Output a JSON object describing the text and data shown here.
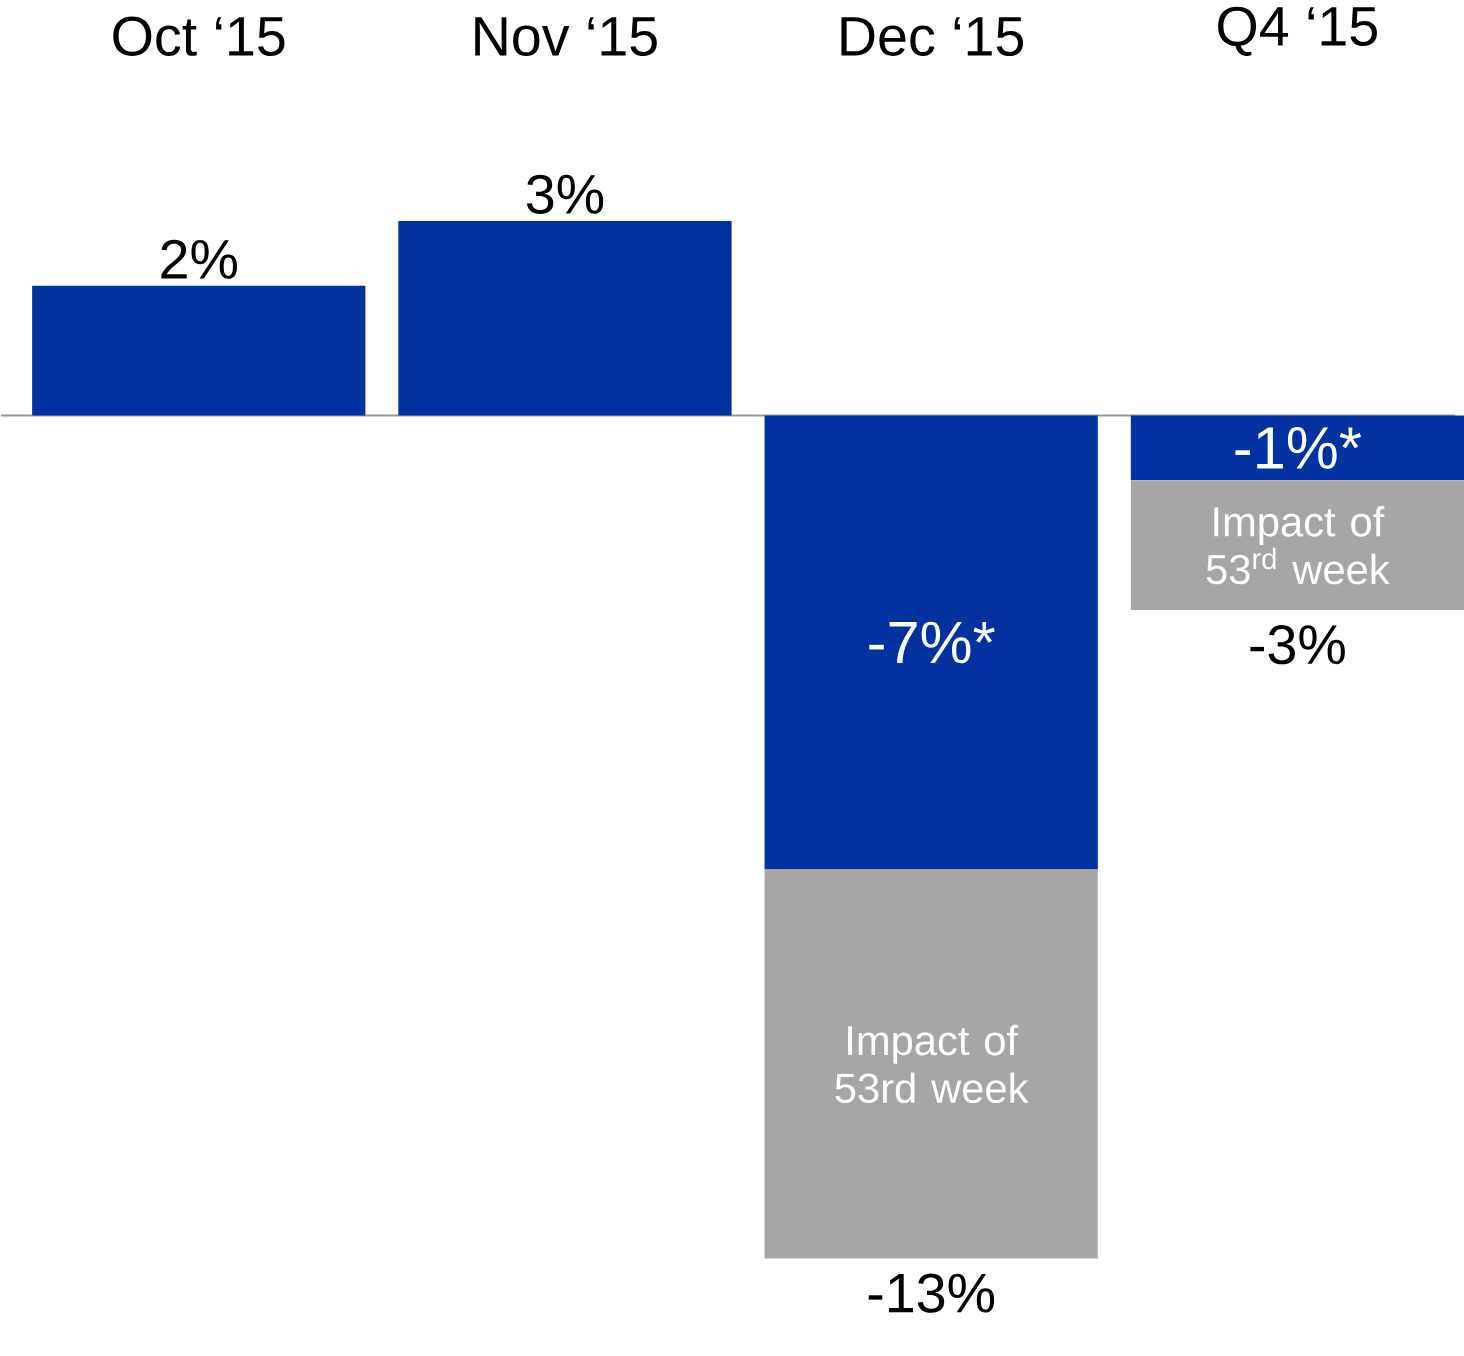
{
  "chart_data": {
    "type": "bar",
    "stacked": true,
    "categories": [
      "Oct ‘15",
      "Nov ‘15",
      "Dec ‘15",
      "Q4 ‘15"
    ],
    "series": [
      {
        "color": "#0033a0",
        "values": [
          2,
          3,
          -7,
          -1
        ],
        "value_labels": [
          null,
          null,
          "-7%*",
          "-1%*"
        ]
      },
      {
        "color": "#a6a6a6",
        "values": [
          null,
          null,
          -6,
          -2
        ],
        "value_labels": [
          null,
          null,
          "Impact of 53rd week",
          "Impact of 53$^{rd}$ week"
        ]
      }
    ],
    "totals": [
      "2%",
      "3%",
      "-13%",
      "-3%"
    ]
  }
}
